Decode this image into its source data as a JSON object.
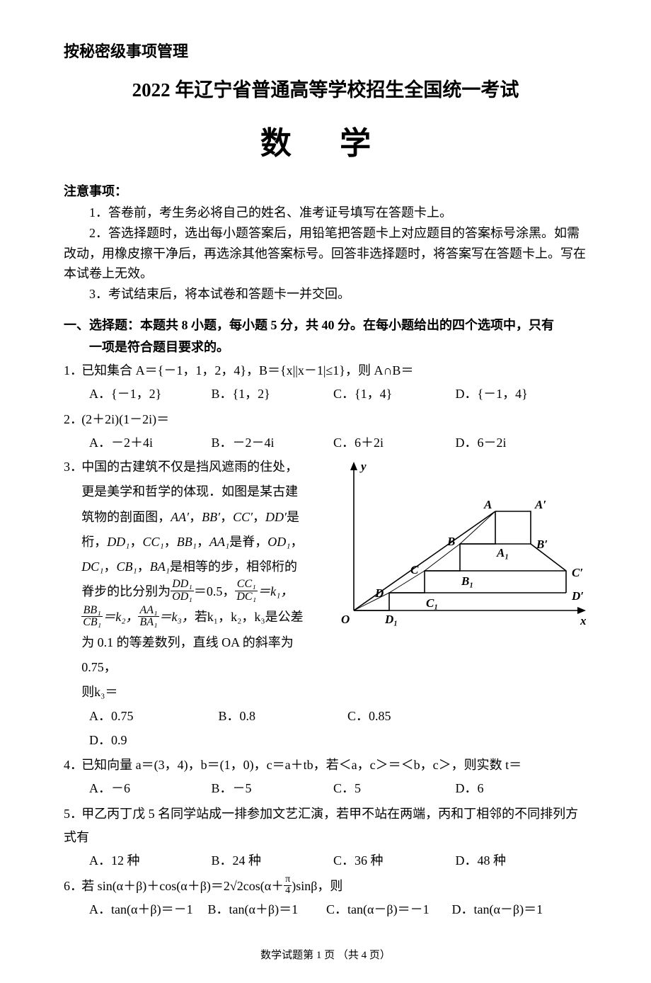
{
  "header": {
    "confidential": "按秘密级事项管理",
    "title": "2022 年辽宁省普通高等学校招生全国统一考试",
    "subject": "数 学"
  },
  "notice": {
    "heading": "注意事项：",
    "items": [
      "1．答卷前，考生务必将自己的姓名、准考证号填写在答题卡上。",
      "2．答选择题时，选出每小题答案后，用铅笔把答题卡上对应题目的答案标号涂黑。如需改动，用橡皮擦干净后，再选涂其他答案标号。回答非选择题时，将答案写在答题卡上。写在本试卷上无效。",
      "3．考试结束后，将本试卷和答题卡一并交回。"
    ]
  },
  "section1": {
    "title_l1": "一、选择题：本题共 8 小题，每小题 5 分，共 40 分。在每小题给出的四个选项中，只有",
    "title_l2": "一项是符合题目要求的。"
  },
  "q1": {
    "num": "1．",
    "stem": "已知集合 A＝{－1，1，2，4}，B＝{x||x－1|≤1}，则 A∩B＝",
    "A": "A．{－1，2}",
    "B": "B．{1，2}",
    "C": "C．{1，4}",
    "D": "D．{－1，4}"
  },
  "q2": {
    "num": "2．",
    "stem": "(2＋2i)(1－2i)＝",
    "A": "A．－2＋4i",
    "B": "B．－2－4i",
    "C": "C．6＋2i",
    "D": "D．6－2i"
  },
  "q3": {
    "num": "3．",
    "lines": {
      "l1": "中国的古建筑不仅是挡风遮雨的住处，",
      "l2": "更是美学和哲学的体现．如图是某古建",
      "l3_a": "筑物的剖面图，",
      "l3_b": "是",
      "l4_a": "桁，",
      "l4_b": "是脊，",
      "l5_a": "",
      "l5_b": "是相等的步，相邻桁的",
      "l6": "脊步的比分别为",
      "eq05": "＝0.5，",
      "eqk1": "＝k₁，",
      "eqk2": "＝k₂，",
      "eqk3": "＝k₃，",
      "l7b": "若k₁，k₂，k₃是公差",
      "l8": "为 0.1 的等差数列，直线 OA 的斜率为 0.75，",
      "l9": "则k₃＝"
    },
    "labels": {
      "AA": "AA′",
      "BB": "BB′",
      "CC": "CC′",
      "DD": "DD′",
      "DD1": "DD₁",
      "CC1": "CC₁",
      "BB1": "BB₁",
      "AA1": "AA₁",
      "OD1": "OD₁",
      "DC1": "DC₁",
      "CB1": "CB₁",
      "BA1": "BA₁"
    },
    "A": "A．0.75",
    "B": "B．0.8",
    "C": "C．0.85",
    "D": "D．0.9"
  },
  "q4": {
    "num": "4．",
    "stem": "已知向量 a＝(3，4)，b＝(1，0)，c＝a＋tb，若＜a，c＞＝＜b，c＞，则实数 t＝",
    "A": "A．－6",
    "B": "B．－5",
    "C": "C．5",
    "D": "D．6"
  },
  "q5": {
    "num": "5．",
    "stem": "甲乙丙丁戊 5 名同学站成一排参加文艺汇演，若甲不站在两端，丙和丁相邻的不同排列方式有",
    "A": "A．12 种",
    "B": "B．24 种",
    "C": "C．36 种",
    "D": "D．48 种"
  },
  "q6": {
    "num": "6．",
    "stem_a": "若 sin(α＋β)＋cos(α＋β)＝2√2cos(α＋",
    "stem_b": ")sinβ，则",
    "A": "A．tan(α＋β)＝－1",
    "B": "B．tan(α＋β)＝1",
    "C": "C．tan(α－β)＝－1",
    "D": "D．tan(α－β)＝1",
    "pi": "π",
    "four": "4"
  },
  "figure": {
    "type": "diagram",
    "background_color": "#ffffff",
    "stroke_color": "#000000",
    "stroke_width": 1.6,
    "axis_arrow_size": 8,
    "axis": {
      "origin_label": "O",
      "x_label": "x",
      "y_label": "y"
    },
    "points": {
      "O": [
        40,
        220
      ],
      "D1": [
        90,
        220
      ],
      "D": [
        90,
        195
      ],
      "C1": [
        140,
        195
      ],
      "C": [
        140,
        164
      ],
      "B1": [
        190,
        164
      ],
      "B": [
        190,
        126
      ],
      "A1": [
        240,
        126
      ],
      "A": [
        240,
        80
      ],
      "Ap": [
        290,
        80
      ],
      "Bp": [
        290,
        126
      ],
      "Cp": [
        340,
        164
      ],
      "Dp": [
        340,
        195
      ]
    },
    "right_outline": [
      [
        240,
        80
      ],
      [
        290,
        80
      ],
      [
        290,
        126
      ],
      [
        340,
        164
      ],
      [
        340,
        195
      ]
    ],
    "node_labels": {
      "O": "O",
      "D1": "D₁",
      "C1": "C₁",
      "B1": "B₁",
      "A1": "A₁",
      "D": "D",
      "C": "C",
      "B": "B",
      "A": "A",
      "Ap": "A′",
      "Bp": "B′",
      "Cp": "C′",
      "Dp": "D′"
    },
    "label_fontsize": 17,
    "label_font_italic": true
  },
  "footer": "数学试题第 1 页 （共 4 页）"
}
